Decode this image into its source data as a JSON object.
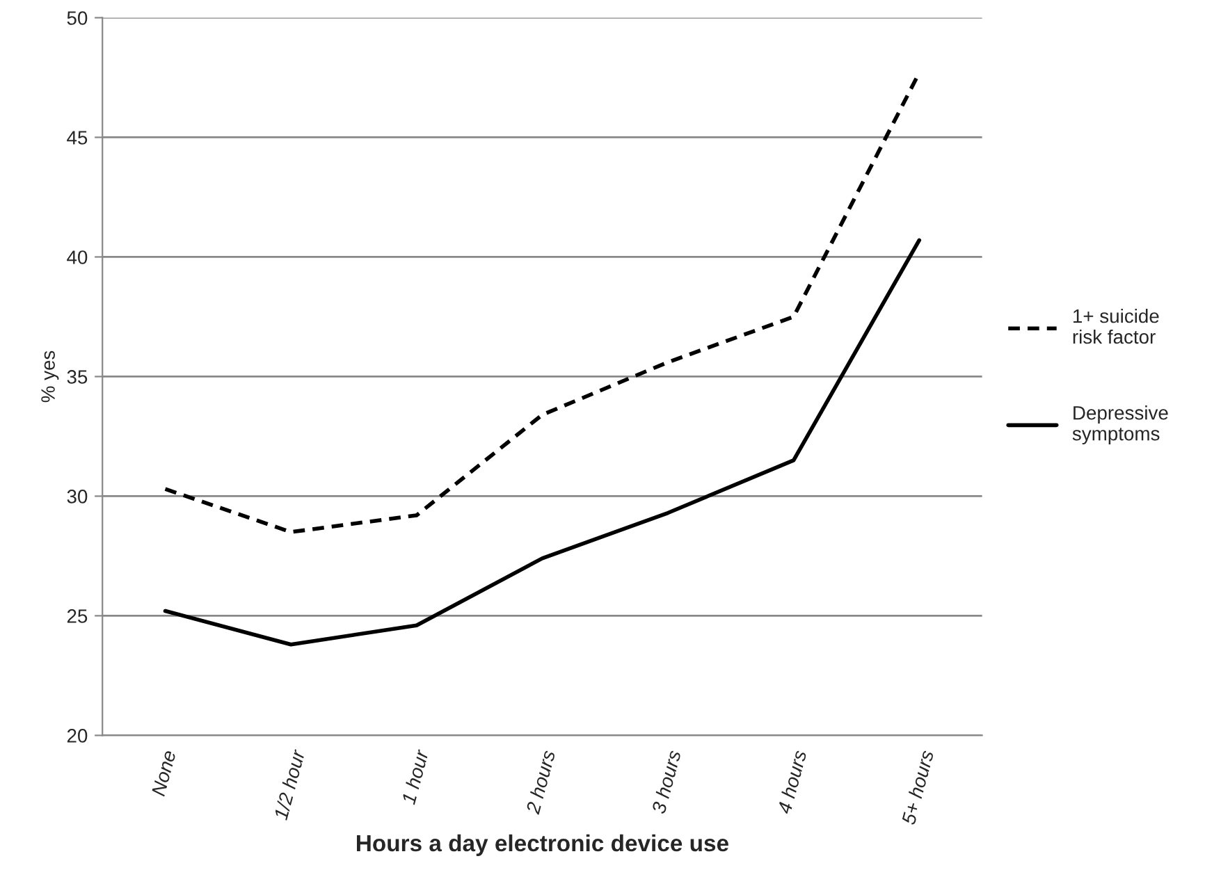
{
  "chart_data": {
    "type": "line",
    "xlabel": "Hours a day electronic device use",
    "ylabel": "% yes",
    "categories": [
      "None",
      "1/2 hour",
      "1 hour",
      "2 hours",
      "3 hours",
      "4 hours",
      "5+ hours"
    ],
    "series": [
      {
        "name": "1+ suicide\nrisk factor",
        "color": "#000000",
        "line_style": "dashed",
        "values": [
          30.3,
          28.5,
          29.2,
          33.4,
          35.6,
          37.5,
          47.7
        ]
      },
      {
        "name": "Depressive\nsymptoms",
        "color": "#000000",
        "line_style": "solid",
        "values": [
          25.2,
          23.8,
          24.6,
          27.4,
          29.3,
          31.5,
          40.7
        ]
      }
    ],
    "ylim": [
      20,
      50
    ],
    "yticks": [
      20,
      25,
      30,
      35,
      40,
      45,
      50
    ],
    "grid": "y",
    "legend": "right",
    "marker": "none"
  }
}
